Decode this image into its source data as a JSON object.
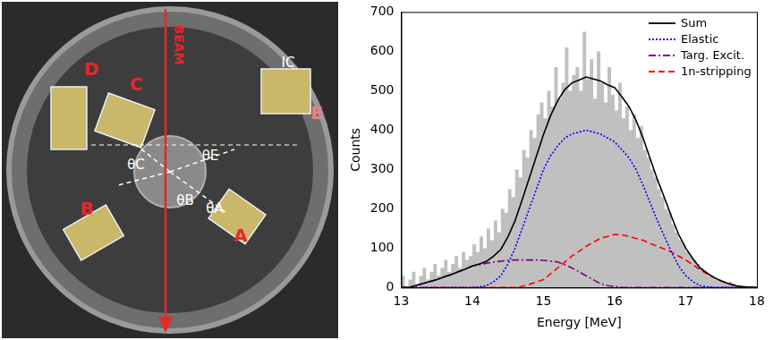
{
  "photo": {
    "beam": "BEAM",
    "detectors": [
      "A",
      "B",
      "C",
      "D",
      "E"
    ],
    "ion_chamber": "IC",
    "angles": [
      "θC",
      "θB",
      "θA",
      "θE"
    ]
  },
  "chart_data": {
    "type": "histogram",
    "xlabel": "Energy [MeV]",
    "ylabel": "Counts",
    "color": "#c0c0c0",
    "bins": [
      13.0,
      13.05,
      13.1,
      13.15,
      13.2,
      13.25,
      13.3,
      13.35,
      13.4,
      13.45,
      13.5,
      13.55,
      13.6,
      13.65,
      13.7,
      13.75,
      13.8,
      13.85,
      13.9,
      13.95,
      14.0,
      14.05,
      14.1,
      14.15,
      14.2,
      14.25,
      14.3,
      14.35,
      14.4,
      14.45,
      14.5,
      14.55,
      14.6,
      14.65,
      14.7,
      14.75,
      14.8,
      14.85,
      14.9,
      14.95,
      15.0,
      15.05,
      15.1,
      15.15,
      15.2,
      15.25,
      15.3,
      15.35,
      15.4,
      15.45,
      15.5,
      15.55,
      15.6,
      15.65,
      15.7,
      15.75,
      15.8,
      15.85,
      15.9,
      15.95,
      16.0,
      16.05,
      16.1,
      16.15,
      16.2,
      16.25,
      16.3,
      16.35,
      16.4,
      16.45,
      16.5,
      16.55,
      16.6,
      16.65,
      16.7,
      16.75,
      16.8,
      16.85,
      16.9,
      16.95,
      17.0,
      17.05,
      17.1,
      17.15,
      17.2,
      17.25,
      17.3,
      17.35,
      17.4,
      17.45,
      17.5,
      17.55,
      17.6,
      17.65,
      17.7,
      17.75,
      17.8,
      17.85,
      17.9,
      17.95,
      18.0
    ],
    "values": [
      0,
      30,
      0,
      20,
      40,
      0,
      30,
      50,
      20,
      40,
      60,
      30,
      50,
      70,
      40,
      60,
      80,
      50,
      90,
      70,
      80,
      110,
      90,
      130,
      100,
      150,
      120,
      170,
      140,
      200,
      190,
      250,
      230,
      300,
      280,
      350,
      330,
      400,
      380,
      440,
      470,
      430,
      500,
      460,
      560,
      480,
      520,
      610,
      500,
      540,
      560,
      500,
      650,
      530,
      580,
      480,
      600,
      520,
      470,
      560,
      490,
      450,
      520,
      430,
      460,
      400,
      440,
      380,
      410,
      350,
      330,
      300,
      280,
      250,
      230,
      200,
      190,
      160,
      140,
      120,
      110,
      90,
      80,
      70,
      60,
      50,
      40,
      35,
      30,
      20,
      20,
      15,
      10,
      15,
      10,
      5,
      0,
      5,
      0,
      0
    ],
    "x": [
      13.0,
      13.1,
      13.2,
      13.3,
      13.4,
      13.5,
      13.6,
      13.7,
      13.8,
      13.9,
      14.0,
      14.1,
      14.2,
      14.3,
      14.4,
      14.5,
      14.6,
      14.7,
      14.8,
      14.9,
      15.0,
      15.1,
      15.2,
      15.3,
      15.4,
      15.5,
      15.6,
      15.7,
      15.8,
      15.9,
      16.0,
      16.1,
      16.2,
      16.3,
      16.4,
      16.5,
      16.6,
      16.7,
      16.8,
      16.9,
      17.0,
      17.1,
      17.2,
      17.3,
      17.4,
      17.5,
      17.6,
      17.7,
      17.8,
      17.9,
      18.0
    ],
    "series": [
      {
        "name": "Sum",
        "color": "#000000",
        "line_style": "solid",
        "type": "line",
        "values": [
          0,
          0,
          5,
          10,
          15,
          20,
          27,
          33,
          40,
          47,
          55,
          60,
          67,
          80,
          97,
          129,
          170,
          223,
          278,
          334,
          389,
          437,
          475,
          503,
          520,
          527,
          535,
          530,
          525,
          515,
          508,
          485,
          460,
          425,
          380,
          327,
          275,
          228,
          180,
          135,
          100,
          73,
          50,
          37,
          25,
          17,
          10,
          5,
          2,
          1,
          0
        ]
      },
      {
        "name": "Elastic",
        "color": "#0000ff",
        "line_style": "dotted",
        "type": "line",
        "values": [
          0,
          0,
          0,
          0,
          0,
          0,
          0,
          0,
          0,
          0,
          0,
          2,
          5,
          15,
          30,
          60,
          100,
          150,
          200,
          250,
          300,
          335,
          360,
          380,
          390,
          395,
          400,
          395,
          390,
          380,
          370,
          350,
          330,
          300,
          260,
          215,
          170,
          130,
          90,
          55,
          30,
          15,
          5,
          2,
          0,
          0,
          0,
          0,
          0,
          0,
          0
        ]
      },
      {
        "name": "Targ. Excit.",
        "color": "#800080",
        "line_style": "dashdot",
        "type": "line",
        "values": [
          0,
          0,
          5,
          10,
          15,
          20,
          27,
          33,
          40,
          47,
          55,
          58,
          62,
          65,
          67,
          69,
          70,
          70,
          70,
          70,
          69,
          67,
          65,
          58,
          50,
          40,
          30,
          20,
          10,
          5,
          3,
          1,
          0,
          0,
          0,
          0,
          0,
          0,
          0,
          0,
          0,
          0,
          0,
          0,
          0,
          0,
          0,
          0,
          0,
          0,
          0
        ]
      },
      {
        "name": "1n-stripping",
        "color": "#ff0000",
        "line_style": "dashed",
        "type": "line",
        "values": [
          0,
          0,
          0,
          0,
          0,
          0,
          0,
          0,
          0,
          0,
          0,
          0,
          0,
          0,
          0,
          0,
          0,
          3,
          8,
          14,
          20,
          35,
          50,
          65,
          80,
          92,
          105,
          115,
          125,
          130,
          135,
          134,
          130,
          125,
          120,
          112,
          105,
          98,
          90,
          80,
          70,
          58,
          45,
          35,
          25,
          17,
          10,
          5,
          2,
          1,
          0
        ]
      }
    ],
    "xlim": [
      13,
      18
    ],
    "xticks": [
      13,
      14,
      15,
      16,
      17,
      18
    ],
    "ylim": [
      0,
      700
    ],
    "yticks": [
      0,
      100,
      200,
      300,
      400,
      500,
      600,
      700
    ],
    "grid": false,
    "legend": "upper right"
  }
}
